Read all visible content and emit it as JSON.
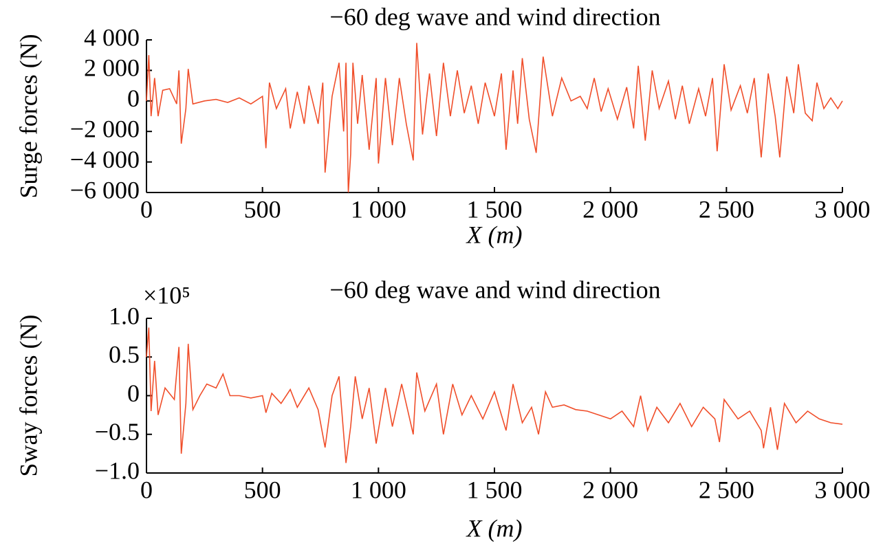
{
  "chart_data": [
    {
      "type": "line",
      "title": "−60 deg wave and wind direction",
      "xlabel": "X (m)",
      "ylabel": "Surge forces (N)",
      "x": [
        0,
        10,
        20,
        35,
        50,
        70,
        100,
        130,
        140,
        150,
        170,
        180,
        200,
        250,
        300,
        350,
        400,
        450,
        500,
        515,
        530,
        560,
        600,
        620,
        650,
        680,
        700,
        740,
        760,
        770,
        800,
        830,
        850,
        860,
        870,
        880,
        890,
        910,
        930,
        960,
        990,
        1000,
        1030,
        1060,
        1090,
        1120,
        1150,
        1165,
        1190,
        1220,
        1250,
        1280,
        1310,
        1340,
        1370,
        1400,
        1430,
        1460,
        1500,
        1530,
        1550,
        1580,
        1600,
        1620,
        1650,
        1680,
        1710,
        1750,
        1790,
        1830,
        1870,
        1900,
        1930,
        1960,
        1990,
        2030,
        2070,
        2100,
        2120,
        2150,
        2180,
        2210,
        2250,
        2280,
        2310,
        2340,
        2380,
        2410,
        2440,
        2460,
        2490,
        2520,
        2560,
        2590,
        2620,
        2650,
        2680,
        2710,
        2730,
        2760,
        2790,
        2810,
        2840,
        2870,
        2890,
        2920,
        2950,
        2980,
        3000
      ],
      "series": [
        {
          "color": "#f04e2a",
          "values": [
            0,
            3000,
            -1000,
            1500,
            -1000,
            700,
            800,
            -200,
            2000,
            -2800,
            -500,
            2100,
            -200,
            0,
            100,
            -100,
            200,
            -200,
            300,
            -3100,
            1200,
            -500,
            800,
            -1800,
            600,
            -1500,
            1000,
            -1500,
            1200,
            -4700,
            300,
            2500,
            -2000,
            2500,
            -6000,
            -3500,
            2500,
            -1500,
            1700,
            -3200,
            1500,
            -4100,
            1500,
            -2900,
            1500,
            -1500,
            -3900,
            3800,
            -2200,
            1800,
            -2300,
            2500,
            -1000,
            2000,
            -800,
            1000,
            -1500,
            1200,
            -1000,
            1800,
            -3200,
            2000,
            -1500,
            2800,
            -1200,
            -3400,
            2900,
            -1000,
            1500,
            0,
            300,
            -500,
            1500,
            -700,
            800,
            -1200,
            900,
            -1800,
            2300,
            -2600,
            2000,
            -500,
            1300,
            -1200,
            1000,
            -1500,
            800,
            -1000,
            1500,
            -3300,
            2400,
            -600,
            1000,
            -800,
            1500,
            -3700,
            1800,
            -1000,
            -3700,
            1600,
            -800,
            2400,
            -800,
            -1300,
            1200,
            -500,
            200,
            -500,
            0
          ]
        }
      ],
      "xlim": [
        0,
        3000
      ],
      "xticks": [
        0,
        500,
        {
          "value": 1000,
          "label": "1 000"
        },
        {
          "value": 1500,
          "label": "1 500"
        },
        {
          "value": 2000,
          "label": "2 000"
        },
        {
          "value": 2500,
          "label": "2 500"
        },
        {
          "value": 3000,
          "label": "3 000"
        }
      ],
      "ylim": [
        -6000,
        4000
      ],
      "yticks": [
        {
          "value": -6000,
          "label": "−6 000"
        },
        {
          "value": -4000,
          "label": "−4 000"
        },
        {
          "value": -2000,
          "label": "−2 000"
        },
        0,
        {
          "value": 2000,
          "label": "2 000"
        },
        {
          "value": 4000,
          "label": "4 000"
        }
      ]
    },
    {
      "type": "line",
      "title": "−60 deg wave and wind direction",
      "xlabel": "X (m)",
      "ylabel": "Sway forces (N)",
      "offset_text": "×10⁵",
      "x": [
        0,
        10,
        20,
        35,
        50,
        80,
        120,
        140,
        150,
        170,
        180,
        200,
        230,
        260,
        300,
        330,
        360,
        400,
        450,
        500,
        515,
        540,
        580,
        620,
        650,
        700,
        740,
        770,
        800,
        830,
        860,
        880,
        900,
        930,
        960,
        990,
        1030,
        1060,
        1100,
        1150,
        1165,
        1200,
        1250,
        1280,
        1320,
        1360,
        1400,
        1450,
        1500,
        1550,
        1580,
        1620,
        1660,
        1690,
        1720,
        1750,
        1800,
        1850,
        1900,
        1950,
        2000,
        2050,
        2100,
        2130,
        2160,
        2200,
        2250,
        2300,
        2350,
        2400,
        2450,
        2470,
        2490,
        2550,
        2600,
        2650,
        2660,
        2690,
        2720,
        2750,
        2800,
        2850,
        2900,
        2950,
        3000
      ],
      "series": [
        {
          "color": "#f04e2a",
          "values": [
            50000,
            88000,
            -20000,
            45000,
            -25000,
            10000,
            -5000,
            63000,
            -75000,
            -10000,
            67000,
            -18000,
            0,
            15000,
            10000,
            28000,
            0,
            0,
            -3000,
            0,
            -22000,
            3000,
            -10000,
            8000,
            -15000,
            10000,
            -18000,
            -67000,
            0,
            25000,
            -87000,
            -40000,
            25000,
            -30000,
            10000,
            -62000,
            10000,
            -40000,
            15000,
            -50000,
            30000,
            -20000,
            15000,
            -50000,
            15000,
            -25000,
            0,
            -30000,
            5000,
            -45000,
            15000,
            -35000,
            -15000,
            -50000,
            5000,
            -15000,
            -12000,
            -18000,
            -20000,
            -25000,
            -30000,
            -20000,
            -40000,
            0,
            -45000,
            -15000,
            -35000,
            -10000,
            -40000,
            -15000,
            -30000,
            -60000,
            -5000,
            -30000,
            -20000,
            -45000,
            -68000,
            -15000,
            -70000,
            -10000,
            -35000,
            -20000,
            -30000,
            -35000,
            -37000
          ]
        }
      ],
      "xlim": [
        0,
        3000
      ],
      "xticks": [
        0,
        500,
        {
          "value": 1000,
          "label": "1 000"
        },
        {
          "value": 1500,
          "label": "1 500"
        },
        {
          "value": 2000,
          "label": "2 000"
        },
        {
          "value": 2500,
          "label": "2 500"
        },
        {
          "value": 3000,
          "label": "3 000"
        }
      ],
      "ylim": [
        -100000,
        100000
      ],
      "yticks": [
        {
          "value": -100000,
          "label": "−1.0"
        },
        {
          "value": -50000,
          "label": "−0.5"
        },
        {
          "value": 0,
          "label": "0"
        },
        {
          "value": 50000,
          "label": "0.5"
        },
        {
          "value": 100000,
          "label": "1.0"
        }
      ]
    }
  ]
}
